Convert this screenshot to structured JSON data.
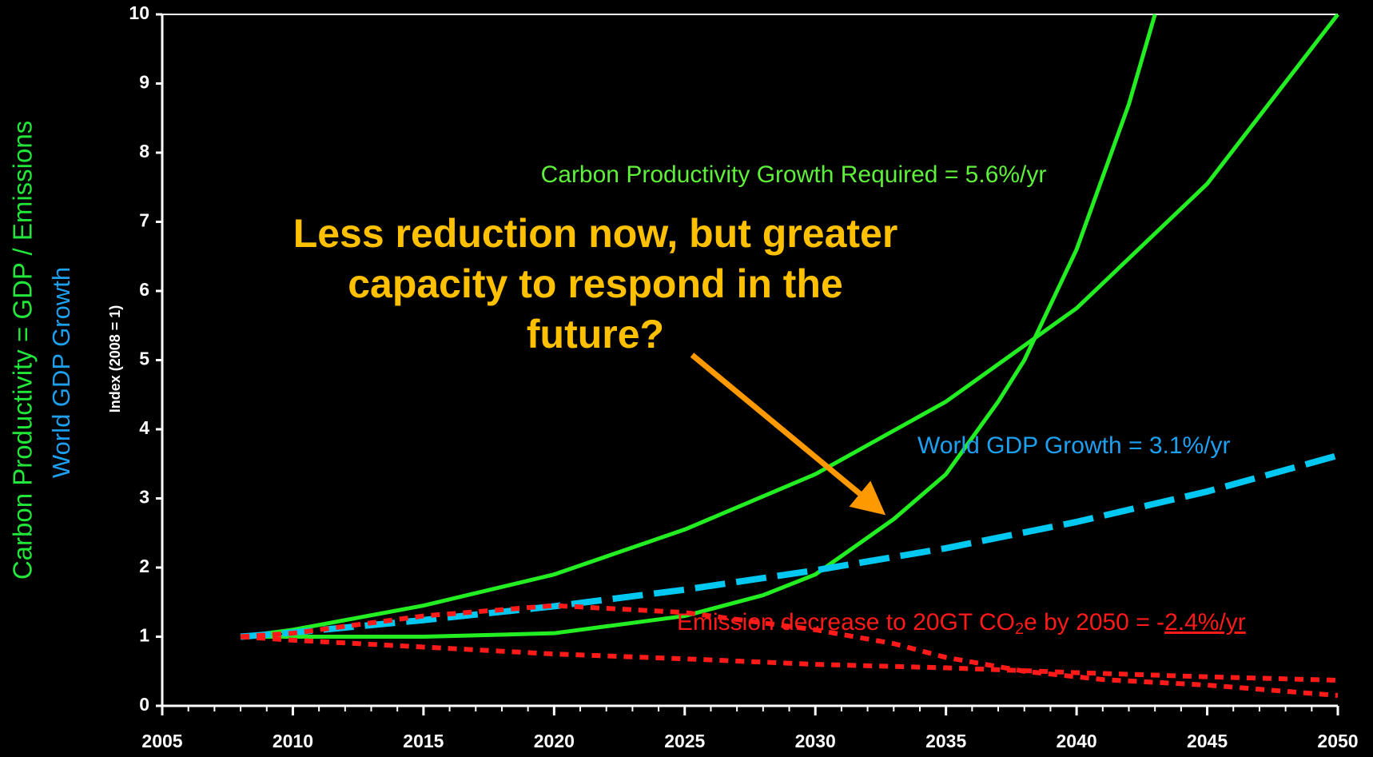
{
  "chart_data": {
    "type": "line",
    "ylabel": "Index (2008 = 1)",
    "side_labels": [
      {
        "text": "Carbon Productivity = GDP / Emissions",
        "color": "#22e63a"
      },
      {
        "text": "World GDP Growth",
        "color": "#1ea0f0"
      }
    ],
    "xlim": [
      2005,
      2050
    ],
    "xticks": [
      2005,
      2010,
      2015,
      2020,
      2025,
      2030,
      2035,
      2040,
      2045,
      2050
    ],
    "ylim": [
      0,
      10
    ],
    "yticks": [
      0,
      1,
      2,
      3,
      4,
      5,
      6,
      7,
      8,
      9,
      10
    ],
    "grid": false,
    "series": [
      {
        "color": "#22ee22",
        "style": "solid",
        "x": [
          2008,
          2010,
          2015,
          2020,
          2025,
          2028,
          2030,
          2033,
          2035,
          2037,
          2038,
          2040,
          2042,
          2043
        ],
        "values": [
          1,
          1,
          1,
          1.05,
          1.3,
          1.6,
          1.9,
          2.7,
          3.35,
          4.4,
          5.0,
          6.6,
          8.7,
          10
        ]
      },
      {
        "color": "#22ee22",
        "style": "solid",
        "x": [
          2008,
          2010,
          2015,
          2020,
          2025,
          2030,
          2035,
          2040,
          2045,
          2050
        ],
        "values": [
          1,
          1.1,
          1.45,
          1.9,
          2.55,
          3.35,
          4.4,
          5.75,
          7.55,
          10
        ]
      },
      {
        "color": "#00c8f0",
        "style": "dashed",
        "x": [
          2008,
          2010,
          2015,
          2020,
          2025,
          2030,
          2035,
          2040,
          2045,
          2050
        ],
        "values": [
          1,
          1.06,
          1.24,
          1.44,
          1.68,
          1.96,
          2.28,
          2.66,
          3.1,
          3.62
        ]
      },
      {
        "color": "#ff1a1a",
        "style": "dotted",
        "x": [
          2008,
          2010,
          2015,
          2020,
          2025,
          2030,
          2033,
          2035,
          2038,
          2041,
          2045,
          2050
        ],
        "values": [
          1,
          1.05,
          1.3,
          1.45,
          1.35,
          1.1,
          0.9,
          0.7,
          0.5,
          0.38,
          0.3,
          0.15
        ]
      },
      {
        "color": "#ff1a1a",
        "style": "dotted",
        "x": [
          2008,
          2010,
          2015,
          2020,
          2025,
          2030,
          2035,
          2040,
          2045,
          2050
        ],
        "values": [
          1,
          0.95,
          0.85,
          0.75,
          0.68,
          0.6,
          0.55,
          0.48,
          0.42,
          0.37
        ]
      }
    ],
    "annotations": [
      {
        "text": "Carbon Productivity Growth Required = 5.6%/yr",
        "color": "#5ef03a"
      },
      {
        "text": "World GDP Growth = 3.1%/yr",
        "color": "#1ea0f0"
      }
    ],
    "emission_note": {
      "parts": [
        "Emission decrease to 20GT CO",
        "2",
        "e by 2050 = -",
        "2.4%/yr"
      ],
      "color": "#ff1a1a"
    },
    "callout": {
      "lines": [
        "Less reduction now, but greater",
        "capacity to respond in the",
        "future?"
      ],
      "color": "#ffc000"
    }
  }
}
